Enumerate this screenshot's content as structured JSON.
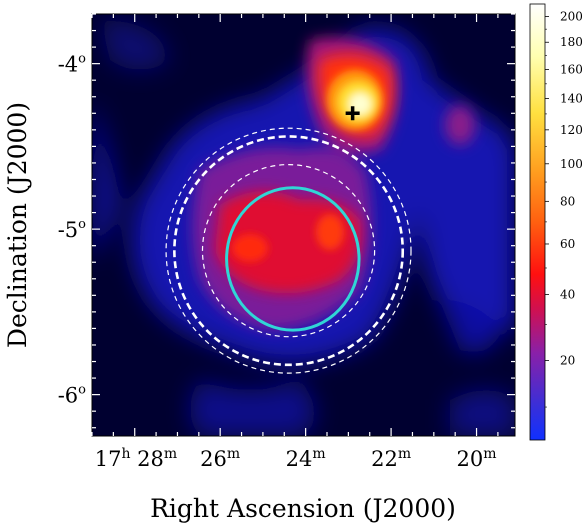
{
  "chart_data": {
    "type": "heatmap",
    "title": "",
    "xlabel": "Right Ascension (J2000)",
    "ylabel": "Declination (J2000)",
    "x_axis": {
      "unit": "hours-minutes",
      "ticks": [
        {
          "h": "17",
          "m": "28",
          "ra_min": 28
        },
        {
          "m": "26",
          "ra_min": 26
        },
        {
          "m": "24",
          "ra_min": 24
        },
        {
          "m": "22",
          "ra_min": 22
        },
        {
          "m": "20",
          "ra_min": 20
        }
      ],
      "range": [
        29.0,
        19.1
      ]
    },
    "y_axis": {
      "ticks": [
        {
          "label": "-4",
          "value": -4
        },
        {
          "label": "-5",
          "value": -5
        },
        {
          "label": "-6",
          "value": -6
        }
      ],
      "range": [
        -6.25,
        -3.7
      ]
    },
    "colorbar": {
      "ticks": [
        "20",
        "40",
        "60",
        "80",
        "100",
        "120",
        "140",
        "160",
        "180",
        "200"
      ],
      "tick_values": [
        20,
        40,
        60,
        80,
        100,
        120,
        140,
        160,
        180,
        200
      ],
      "range": [
        5,
        210
      ],
      "scale": "sqrt"
    },
    "sources": [
      {
        "name": "peak",
        "ra_min": 22.9,
        "dec": -4.3,
        "marker": "cross",
        "color": "#000000"
      }
    ],
    "regions": [
      {
        "shape": "ellipse",
        "ra_min": 24.3,
        "dec": -5.18,
        "ra_radius_min": 1.55,
        "dec_radius": 0.43,
        "color": "#30d6d6",
        "style": "solid"
      },
      {
        "shape": "circle",
        "ra_min": 24.4,
        "dec": -5.13,
        "radius_deg": 0.52,
        "color": "#ffffff",
        "style": "dashed"
      },
      {
        "shape": "circle",
        "ra_min": 24.4,
        "dec": -5.13,
        "radius_deg": 0.69,
        "color": "#ffffff",
        "style": "dashed-bold"
      },
      {
        "shape": "circle",
        "ra_min": 24.4,
        "dec": -5.13,
        "radius_deg": 0.74,
        "color": "#ffffff",
        "style": "dashed"
      }
    ],
    "colors": {
      "background": "#000030",
      "accent_region": "#30d6d6"
    }
  }
}
